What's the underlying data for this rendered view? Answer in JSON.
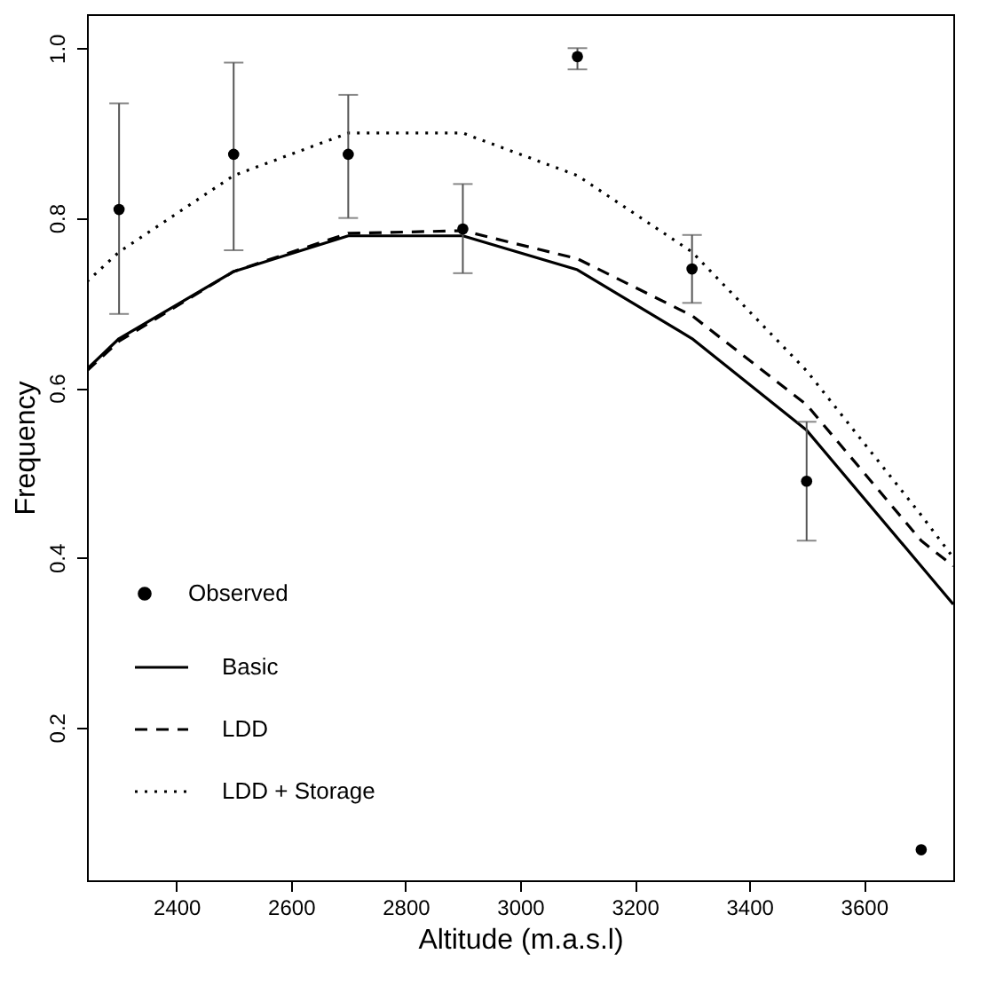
{
  "chart_data": {
    "type": "line",
    "xlabel": "Altitude (m.a.s.l)",
    "ylabel": "Frequency",
    "xlim": [
      2244,
      3756
    ],
    "ylim": [
      0.02,
      1.04
    ],
    "xticks": [
      2400,
      2600,
      2800,
      3000,
      3200,
      3400,
      3600
    ],
    "yticks": [
      0.2,
      0.4,
      0.6,
      0.8,
      {
        "value": 1,
        "label": "1.0"
      }
    ],
    "grid": false,
    "legend": "bottom left",
    "series": [
      {
        "name": "Observed",
        "type": "scatter",
        "marker": "circle",
        "color": "#000000",
        "x": [
          2300,
          2500,
          2700,
          2900,
          3100,
          3300,
          3500,
          3700
        ],
        "values": [
          0.81,
          0.875,
          0.875,
          0.787,
          0.99,
          0.74,
          0.49,
          0.056
        ],
        "errors": [
          [
            0.687,
            0.935
          ],
          [
            0.762,
            0.983
          ],
          [
            0.8,
            0.945
          ],
          [
            0.735,
            0.84
          ],
          [
            0.975,
            1.0
          ],
          [
            0.7,
            0.78
          ],
          [
            0.42,
            0.56
          ],
          null
        ]
      },
      {
        "name": "Basic",
        "line_style": "solid",
        "color": "#000000",
        "x": [
          2244,
          2300,
          2500,
          2700,
          2900,
          3100,
          3300,
          3500,
          3700,
          3756
        ],
        "values": [
          0.622,
          0.658,
          0.737,
          0.779,
          0.779,
          0.739,
          0.658,
          0.55,
          0.39,
          0.345
        ]
      },
      {
        "name": "LDD",
        "line_style": "dashed",
        "color": "#000000",
        "x": [
          2244,
          2300,
          2500,
          2700,
          2900,
          3100,
          3300,
          3500,
          3700,
          3756
        ],
        "values": [
          0.62,
          0.655,
          0.737,
          0.782,
          0.785,
          0.752,
          0.685,
          0.58,
          0.42,
          0.39
        ]
      },
      {
        "name": "LDD + Storage",
        "line_style": "dotted",
        "color": "#000000",
        "x": [
          2244,
          2300,
          2500,
          2700,
          2900,
          3100,
          3300,
          3500,
          3700,
          3756
        ],
        "values": [
          0.725,
          0.76,
          0.85,
          0.9,
          0.9,
          0.85,
          0.76,
          0.62,
          0.45,
          0.4
        ]
      }
    ]
  }
}
